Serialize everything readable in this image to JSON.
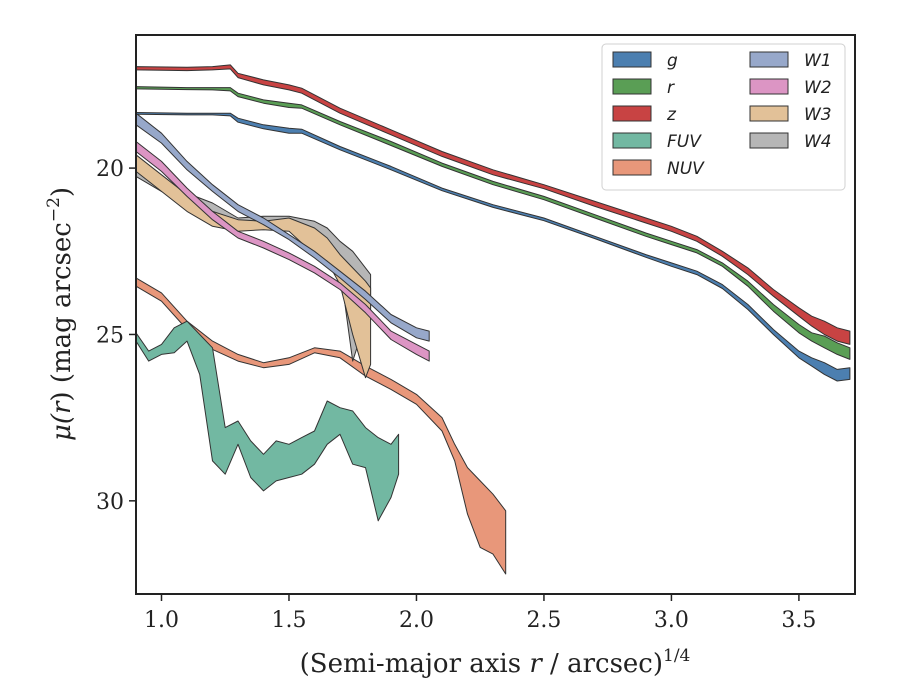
{
  "chart_data": {
    "type": "area",
    "title": "",
    "xlabel_main": "(Semi-major axis ",
    "xlabel_var": "r",
    "xlabel_unit": " / arcsec)",
    "xlabel_exp": "1/4",
    "ylabel_mu": "μ(",
    "ylabel_var": "r",
    "ylabel_unit": ") (mag arcsec",
    "ylabel_exp": "−2",
    "ylabel_close": ")",
    "xlim": [
      0.9,
      3.72
    ],
    "ylim": [
      32.8,
      16.0
    ],
    "y_inverted": true,
    "xticks": [
      1.0,
      1.5,
      2.0,
      2.5,
      3.0,
      3.5
    ],
    "xtick_labels": [
      "1.0",
      "1.5",
      "2.0",
      "2.5",
      "3.0",
      "3.5"
    ],
    "yticks": [
      20,
      25,
      30
    ],
    "ytick_labels": [
      "20",
      "25",
      "30"
    ],
    "grid": false,
    "legend_position": "top-right",
    "legend_columns": 2,
    "series": [
      {
        "name": "g",
        "color": "#4c7fb0",
        "points": [
          [
            0.9,
            18.33,
            18.38
          ],
          [
            1.1,
            18.35,
            18.4
          ],
          [
            1.2,
            18.35,
            18.4
          ],
          [
            1.27,
            18.35,
            18.43
          ],
          [
            1.3,
            18.5,
            18.62
          ],
          [
            1.4,
            18.7,
            18.82
          ],
          [
            1.5,
            18.8,
            18.95
          ],
          [
            1.55,
            18.83,
            18.95
          ],
          [
            1.7,
            19.35,
            19.45
          ],
          [
            1.9,
            19.95,
            20.05
          ],
          [
            2.1,
            20.6,
            20.68
          ],
          [
            2.3,
            21.1,
            21.18
          ],
          [
            2.5,
            21.5,
            21.58
          ],
          [
            2.7,
            22.05,
            22.12
          ],
          [
            2.9,
            22.6,
            22.68
          ],
          [
            3.0,
            22.85,
            22.95
          ],
          [
            3.1,
            23.1,
            23.2
          ],
          [
            3.2,
            23.5,
            23.62
          ],
          [
            3.3,
            24.1,
            24.25
          ],
          [
            3.4,
            24.85,
            25.0
          ],
          [
            3.5,
            25.5,
            25.7
          ],
          [
            3.55,
            25.7,
            25.95
          ],
          [
            3.6,
            25.85,
            26.2
          ],
          [
            3.65,
            26.05,
            26.4
          ],
          [
            3.7,
            26.0,
            26.35
          ]
        ]
      },
      {
        "name": "r",
        "color": "#5a9e55",
        "points": [
          [
            0.9,
            17.55,
            17.62
          ],
          [
            1.1,
            17.58,
            17.64
          ],
          [
            1.2,
            17.58,
            17.65
          ],
          [
            1.27,
            17.58,
            17.68
          ],
          [
            1.3,
            17.75,
            17.85
          ],
          [
            1.4,
            17.95,
            18.05
          ],
          [
            1.5,
            18.05,
            18.18
          ],
          [
            1.55,
            18.1,
            18.2
          ],
          [
            1.7,
            18.6,
            18.7
          ],
          [
            1.9,
            19.2,
            19.32
          ],
          [
            2.1,
            19.85,
            19.95
          ],
          [
            2.3,
            20.4,
            20.5
          ],
          [
            2.5,
            20.85,
            20.95
          ],
          [
            2.7,
            21.4,
            21.5
          ],
          [
            2.9,
            21.95,
            22.05
          ],
          [
            3.0,
            22.2,
            22.3
          ],
          [
            3.1,
            22.45,
            22.55
          ],
          [
            3.2,
            22.85,
            22.95
          ],
          [
            3.3,
            23.4,
            23.55
          ],
          [
            3.4,
            24.1,
            24.3
          ],
          [
            3.5,
            24.7,
            24.95
          ],
          [
            3.55,
            24.95,
            25.2
          ],
          [
            3.6,
            25.05,
            25.4
          ],
          [
            3.65,
            25.25,
            25.6
          ],
          [
            3.7,
            25.4,
            25.75
          ]
        ]
      },
      {
        "name": "z",
        "color": "#c84343",
        "points": [
          [
            0.9,
            16.95,
            17.05
          ],
          [
            1.1,
            16.97,
            17.07
          ],
          [
            1.2,
            16.95,
            17.05
          ],
          [
            1.27,
            16.9,
            17.02
          ],
          [
            1.3,
            17.15,
            17.28
          ],
          [
            1.4,
            17.35,
            17.5
          ],
          [
            1.5,
            17.5,
            17.65
          ],
          [
            1.55,
            17.6,
            17.75
          ],
          [
            1.7,
            18.2,
            18.35
          ],
          [
            1.9,
            18.85,
            19.0
          ],
          [
            2.1,
            19.5,
            19.65
          ],
          [
            2.3,
            20.05,
            20.2
          ],
          [
            2.5,
            20.5,
            20.62
          ],
          [
            2.7,
            21.0,
            21.15
          ],
          [
            2.9,
            21.5,
            21.65
          ],
          [
            3.0,
            21.75,
            21.9
          ],
          [
            3.1,
            22.05,
            22.2
          ],
          [
            3.2,
            22.5,
            22.65
          ],
          [
            3.3,
            23.0,
            23.2
          ],
          [
            3.4,
            23.65,
            23.85
          ],
          [
            3.5,
            24.2,
            24.45
          ],
          [
            3.55,
            24.45,
            24.75
          ],
          [
            3.6,
            24.6,
            25.0
          ],
          [
            3.65,
            24.8,
            25.2
          ],
          [
            3.7,
            24.9,
            25.3
          ]
        ]
      },
      {
        "name": "FUV",
        "color": "#72b8a2",
        "points": [
          [
            0.9,
            24.95,
            25.2
          ],
          [
            0.95,
            25.5,
            25.8
          ],
          [
            1.0,
            25.3,
            25.6
          ],
          [
            1.05,
            24.8,
            25.55
          ],
          [
            1.1,
            24.6,
            25.2
          ],
          [
            1.15,
            25.0,
            26.2
          ],
          [
            1.2,
            25.4,
            28.8
          ],
          [
            1.25,
            27.8,
            29.2
          ],
          [
            1.3,
            27.6,
            28.3
          ],
          [
            1.35,
            28.2,
            29.3
          ],
          [
            1.4,
            28.6,
            29.7
          ],
          [
            1.45,
            28.2,
            29.4
          ],
          [
            1.5,
            28.3,
            29.3
          ],
          [
            1.55,
            28.1,
            29.2
          ],
          [
            1.6,
            27.9,
            28.9
          ],
          [
            1.65,
            27.0,
            28.3
          ],
          [
            1.7,
            27.2,
            28.0
          ],
          [
            1.75,
            27.3,
            28.9
          ],
          [
            1.8,
            27.8,
            29.0
          ],
          [
            1.85,
            28.1,
            30.6
          ],
          [
            1.9,
            28.3,
            29.9
          ],
          [
            1.93,
            28.0,
            29.2
          ]
        ]
      },
      {
        "name": "NUV",
        "color": "#e8977a",
        "points": [
          [
            0.9,
            23.3,
            23.55
          ],
          [
            1.0,
            23.75,
            24.0
          ],
          [
            1.1,
            24.6,
            24.85
          ],
          [
            1.2,
            25.2,
            25.45
          ],
          [
            1.3,
            25.6,
            25.8
          ],
          [
            1.4,
            25.85,
            26.0
          ],
          [
            1.5,
            25.7,
            25.9
          ],
          [
            1.6,
            25.4,
            25.55
          ],
          [
            1.7,
            25.5,
            25.7
          ],
          [
            1.8,
            25.95,
            26.25
          ],
          [
            1.9,
            26.35,
            26.65
          ],
          [
            2.0,
            26.8,
            27.1
          ],
          [
            2.1,
            27.5,
            27.9
          ],
          [
            2.15,
            28.3,
            28.8
          ],
          [
            2.2,
            29.0,
            30.4
          ],
          [
            2.25,
            29.4,
            31.4
          ],
          [
            2.3,
            29.8,
            31.6
          ],
          [
            2.35,
            30.3,
            32.2
          ]
        ]
      },
      {
        "name": "W1",
        "color": "#97a8ca",
        "points": [
          [
            0.9,
            18.35,
            18.7
          ],
          [
            1.0,
            18.95,
            19.25
          ],
          [
            1.1,
            19.8,
            20.05
          ],
          [
            1.2,
            20.5,
            20.7
          ],
          [
            1.3,
            21.1,
            21.3
          ],
          [
            1.4,
            21.5,
            21.7
          ],
          [
            1.5,
            22.0,
            22.15
          ],
          [
            1.6,
            22.5,
            22.7
          ],
          [
            1.7,
            23.1,
            23.3
          ],
          [
            1.8,
            23.7,
            23.95
          ],
          [
            1.9,
            24.4,
            24.65
          ],
          [
            2.0,
            24.8,
            25.1
          ],
          [
            2.05,
            24.9,
            25.2
          ]
        ]
      },
      {
        "name": "W2",
        "color": "#dc95c4",
        "points": [
          [
            0.9,
            19.2,
            19.5
          ],
          [
            1.0,
            19.8,
            20.1
          ],
          [
            1.1,
            20.6,
            20.85
          ],
          [
            1.2,
            21.3,
            21.55
          ],
          [
            1.3,
            21.9,
            22.1
          ],
          [
            1.4,
            22.2,
            22.4
          ],
          [
            1.5,
            22.55,
            22.75
          ],
          [
            1.6,
            22.95,
            23.15
          ],
          [
            1.7,
            23.45,
            23.65
          ],
          [
            1.8,
            24.1,
            24.35
          ],
          [
            1.9,
            24.9,
            25.15
          ],
          [
            2.0,
            25.3,
            25.6
          ],
          [
            2.05,
            25.5,
            25.8
          ]
        ]
      },
      {
        "name": "W3",
        "color": "#e2c198",
        "points": [
          [
            0.9,
            19.6,
            20.1
          ],
          [
            1.0,
            20.2,
            20.7
          ],
          [
            1.1,
            20.8,
            21.3
          ],
          [
            1.2,
            21.3,
            21.75
          ],
          [
            1.3,
            21.55,
            21.9
          ],
          [
            1.4,
            21.6,
            21.85
          ],
          [
            1.5,
            21.5,
            21.9
          ],
          [
            1.6,
            21.8,
            22.6
          ],
          [
            1.65,
            22.1,
            22.8
          ],
          [
            1.7,
            22.6,
            23.5
          ],
          [
            1.75,
            23.0,
            25.0
          ],
          [
            1.8,
            23.4,
            26.3
          ],
          [
            1.82,
            23.6,
            25.9
          ]
        ]
      },
      {
        "name": "W4",
        "color": "#b6b6b6",
        "points": [
          [
            0.9,
            19.95,
            20.25
          ],
          [
            1.0,
            20.35,
            20.7
          ],
          [
            1.1,
            20.75,
            21.05
          ],
          [
            1.2,
            21.05,
            21.35
          ],
          [
            1.3,
            21.5,
            21.75
          ],
          [
            1.4,
            21.45,
            21.7
          ],
          [
            1.5,
            21.45,
            21.7
          ],
          [
            1.6,
            21.6,
            22.2
          ],
          [
            1.65,
            21.8,
            22.5
          ],
          [
            1.7,
            22.2,
            23.0
          ],
          [
            1.75,
            22.5,
            25.8
          ],
          [
            1.8,
            23.0,
            24.6
          ],
          [
            1.82,
            23.2,
            24.2
          ]
        ]
      }
    ]
  },
  "legend": {
    "col1": [
      "g",
      "r",
      "z",
      "FUV",
      "NUV"
    ],
    "col2": [
      "W1",
      "W2",
      "W3",
      "W4"
    ]
  }
}
